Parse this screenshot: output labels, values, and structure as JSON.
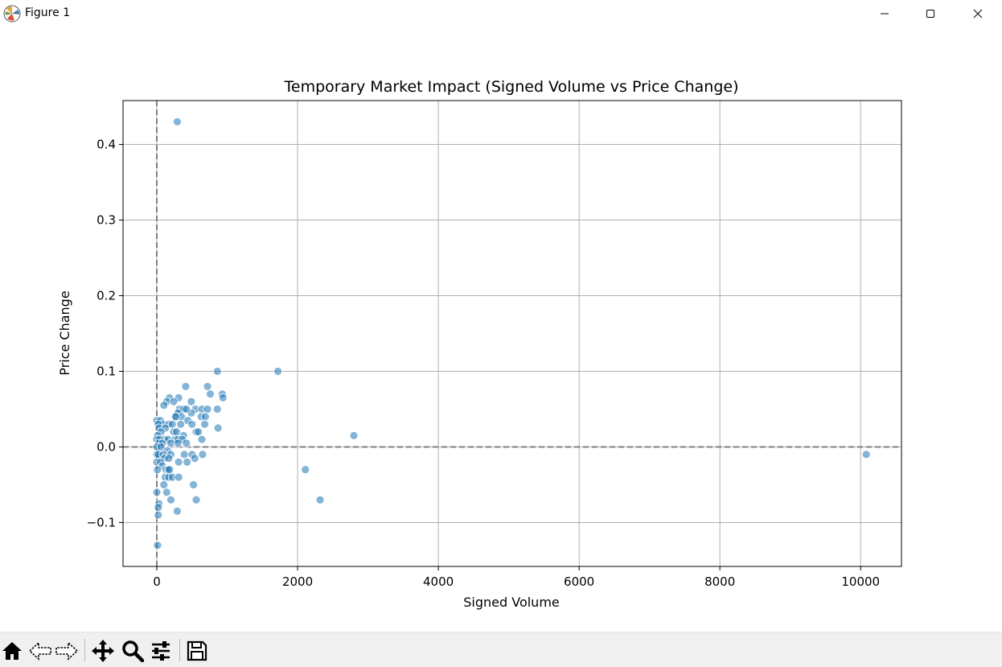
{
  "window": {
    "title": "Figure 1",
    "icons": [
      "matplotlib-app-icon",
      "minimize-icon",
      "maximize-icon",
      "close-icon"
    ]
  },
  "toolbar": {
    "icons": [
      "home-icon",
      "back-icon",
      "forward-icon",
      "pan-icon",
      "zoom-icon",
      "configure-subplots-icon",
      "save-icon"
    ]
  },
  "chart_data": {
    "type": "scatter",
    "title": "Temporary Market Impact (Signed Volume vs Price Change)",
    "xlabel": "Signed Volume",
    "ylabel": "Price Change",
    "xlim": [
      -480,
      10580
    ],
    "ylim": [
      -0.158,
      0.458
    ],
    "xticks": [
      0,
      2000,
      4000,
      6000,
      8000,
      10000
    ],
    "xtick_labels": [
      "0",
      "2000",
      "4000",
      "6000",
      "8000",
      "10000"
    ],
    "yticks": [
      -0.1,
      0.0,
      0.1,
      0.2,
      0.3,
      0.4
    ],
    "ytick_labels": [
      "−0.1",
      "0.0",
      "0.1",
      "0.2",
      "0.3",
      "0.4"
    ],
    "grid": true,
    "reference_lines": [
      {
        "axis": "x",
        "value": 0,
        "style": "dashed",
        "color": "#808080"
      },
      {
        "axis": "y",
        "value": 0,
        "style": "dashed",
        "color": "#808080"
      }
    ],
    "point_color": "#1f77b4",
    "point_alpha": 0.55,
    "points": [
      [
        290,
        0.43
      ],
      [
        860,
        0.1
      ],
      [
        1720,
        0.1
      ],
      [
        410,
        0.08
      ],
      [
        720,
        0.08
      ],
      [
        930,
        0.07
      ],
      [
        760,
        0.07
      ],
      [
        940,
        0.065
      ],
      [
        180,
        0.065
      ],
      [
        310,
        0.065
      ],
      [
        140,
        0.06
      ],
      [
        240,
        0.06
      ],
      [
        490,
        0.06
      ],
      [
        100,
        0.055
      ],
      [
        320,
        0.05
      ],
      [
        380,
        0.05
      ],
      [
        550,
        0.05
      ],
      [
        640,
        0.05
      ],
      [
        720,
        0.05
      ],
      [
        860,
        0.05
      ],
      [
        300,
        0.045
      ],
      [
        490,
        0.045
      ],
      [
        420,
        0.05
      ],
      [
        260,
        0.04
      ],
      [
        350,
        0.04
      ],
      [
        630,
        0.04
      ],
      [
        690,
        0.04
      ],
      [
        270,
        0.04
      ],
      [
        440,
        0.035
      ],
      [
        0,
        0.035
      ],
      [
        50,
        0.035
      ],
      [
        90,
        0.03
      ],
      [
        170,
        0.03
      ],
      [
        220,
        0.03
      ],
      [
        340,
        0.03
      ],
      [
        500,
        0.03
      ],
      [
        680,
        0.03
      ],
      [
        20,
        0.03
      ],
      [
        870,
        0.025
      ],
      [
        30,
        0.025
      ],
      [
        120,
        0.025
      ],
      [
        240,
        0.02
      ],
      [
        280,
        0.02
      ],
      [
        560,
        0.02
      ],
      [
        590,
        0.02
      ],
      [
        60,
        0.02
      ],
      [
        2800,
        0.015
      ],
      [
        10,
        0.015
      ],
      [
        380,
        0.015
      ],
      [
        110,
        0.01
      ],
      [
        160,
        0.01
      ],
      [
        260,
        0.01
      ],
      [
        300,
        0.01
      ],
      [
        360,
        0.01
      ],
      [
        0,
        0.01
      ],
      [
        640,
        0.01
      ],
      [
        40,
        0.01
      ],
      [
        30,
        0.005
      ],
      [
        80,
        0.005
      ],
      [
        200,
        0.005
      ],
      [
        300,
        0.005
      ],
      [
        420,
        0.005
      ],
      [
        0,
        0.0
      ],
      [
        60,
        0.0
      ],
      [
        150,
        -0.005
      ],
      [
        0,
        -0.01
      ],
      [
        20,
        -0.01
      ],
      [
        90,
        -0.01
      ],
      [
        200,
        -0.01
      ],
      [
        390,
        -0.01
      ],
      [
        500,
        -0.01
      ],
      [
        650,
        -0.01
      ],
      [
        10080,
        -0.01
      ],
      [
        110,
        -0.015
      ],
      [
        170,
        -0.015
      ],
      [
        540,
        -0.015
      ],
      [
        0,
        -0.02
      ],
      [
        50,
        -0.02
      ],
      [
        310,
        -0.02
      ],
      [
        430,
        -0.02
      ],
      [
        80,
        -0.025
      ],
      [
        10,
        -0.03
      ],
      [
        130,
        -0.03
      ],
      [
        160,
        -0.03
      ],
      [
        180,
        -0.03
      ],
      [
        2110,
        -0.03
      ],
      [
        120,
        -0.04
      ],
      [
        170,
        -0.04
      ],
      [
        220,
        -0.04
      ],
      [
        310,
        -0.04
      ],
      [
        100,
        -0.05
      ],
      [
        520,
        -0.05
      ],
      [
        0,
        -0.06
      ],
      [
        140,
        -0.06
      ],
      [
        200,
        -0.07
      ],
      [
        560,
        -0.07
      ],
      [
        2320,
        -0.07
      ],
      [
        30,
        -0.075
      ],
      [
        20,
        -0.08
      ],
      [
        290,
        -0.085
      ],
      [
        20,
        -0.09
      ],
      [
        10,
        -0.13
      ]
    ]
  }
}
